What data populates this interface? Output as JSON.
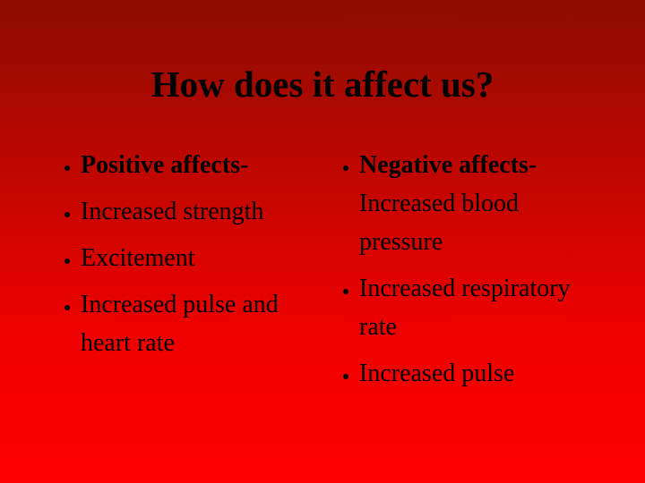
{
  "title": "How does it affect us?",
  "columns": [
    {
      "items": [
        {
          "lead": "Positive affects-"
        },
        {
          "text": "Increased strength"
        },
        {
          "text": "Excitement"
        },
        {
          "text": "Increased pulse and heart rate"
        }
      ]
    },
    {
      "items": [
        {
          "lead": "Negative affects-",
          "text": "Increased blood pressure"
        },
        {
          "text": "Increased respiratory rate"
        },
        {
          "text": "Increased pulse"
        }
      ]
    }
  ]
}
